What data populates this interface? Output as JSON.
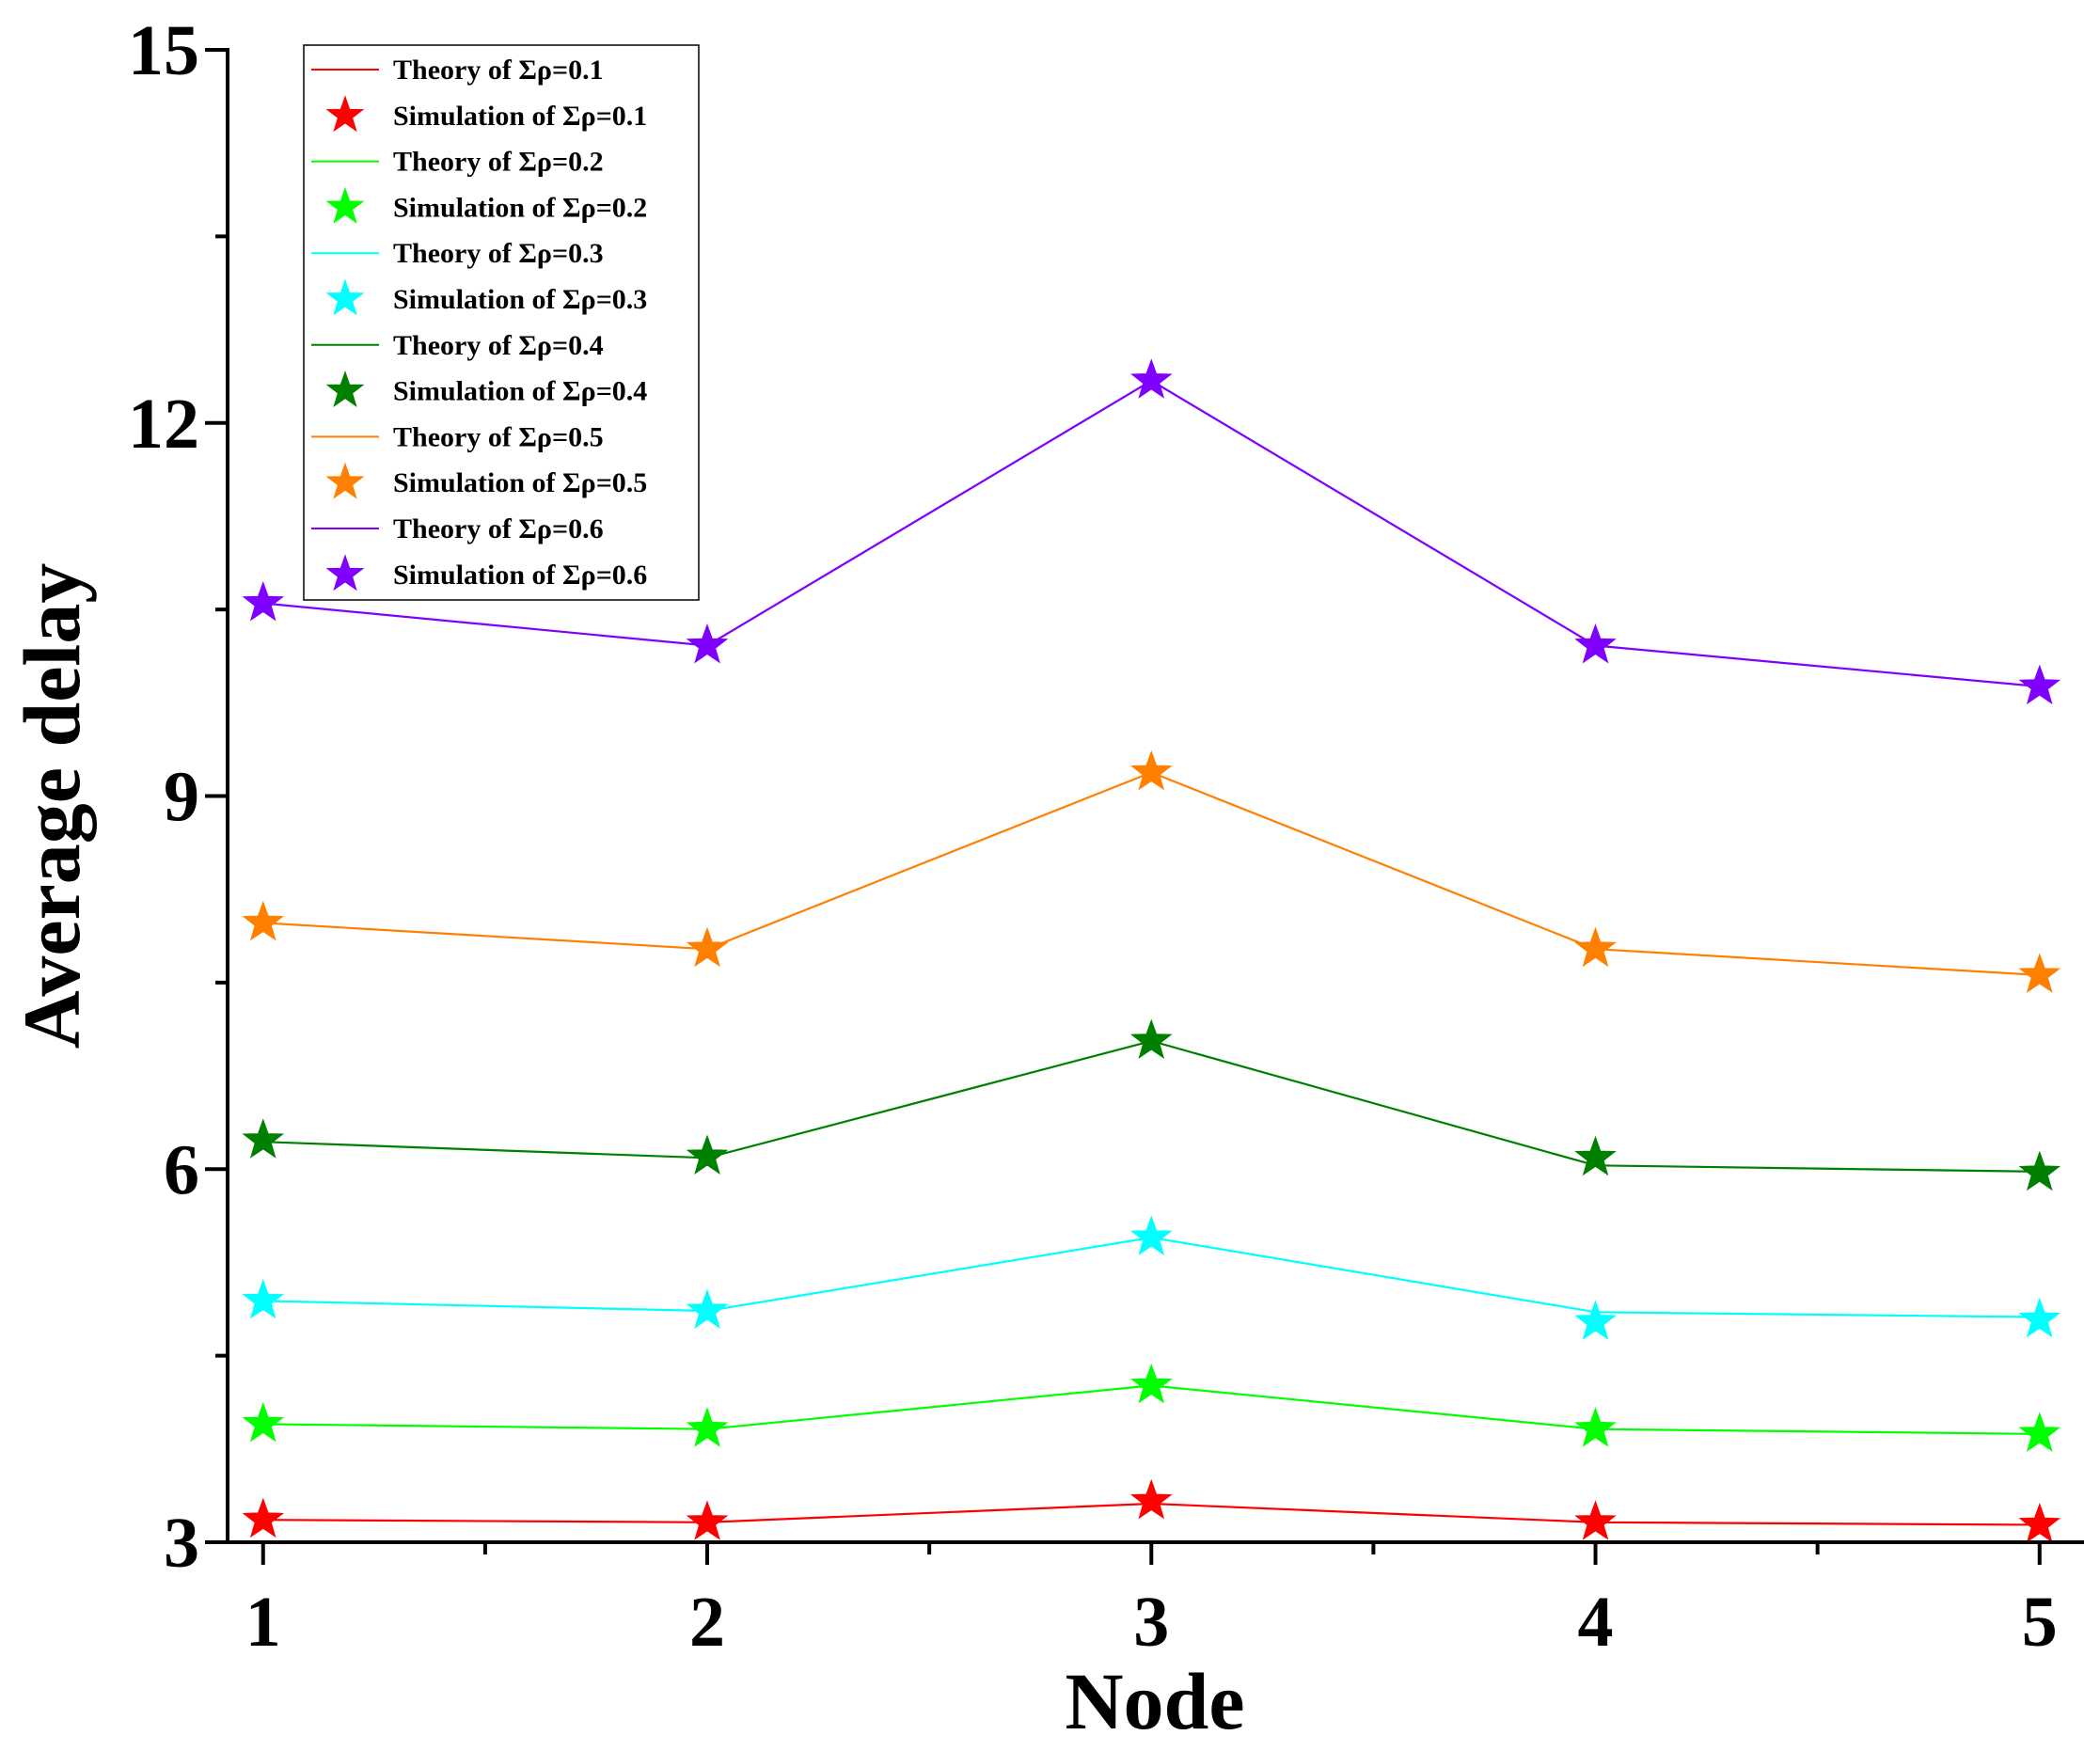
{
  "chart_data": {
    "type": "line",
    "title": "",
    "xlabel": "Node",
    "ylabel": "Average delay",
    "x": [
      1,
      2,
      3,
      4,
      5
    ],
    "xlim": [
      0.92,
      5.1
    ],
    "ylim": [
      3,
      15
    ],
    "xticks": [
      "1",
      "2",
      "3",
      "4",
      "5"
    ],
    "yticks": [
      "3",
      "6",
      "9",
      "12",
      "15"
    ],
    "grid": false,
    "legend_position": "top-left",
    "series": [
      {
        "name": "Σρ=0.1",
        "theory_label": "Theory of Σρ=0.1",
        "sim_label": "Simulation of Σρ=0.1",
        "color": "#ff0000",
        "theory": [
          3.18,
          3.16,
          3.31,
          3.16,
          3.14
        ],
        "simulation": [
          3.18,
          3.16,
          3.33,
          3.16,
          3.14
        ]
      },
      {
        "name": "Σρ=0.2",
        "theory_label": "Theory of Σρ=0.2",
        "sim_label": "Simulation of Σρ=0.2",
        "color": "#00ff00",
        "theory": [
          3.95,
          3.91,
          4.26,
          3.91,
          3.87
        ],
        "simulation": [
          3.95,
          3.91,
          4.26,
          3.91,
          3.87
        ]
      },
      {
        "name": "Σρ=0.3",
        "theory_label": "Theory of Σρ=0.3",
        "sim_label": "Simulation of  Σρ=0.3",
        "color": "#00ffff",
        "theory": [
          4.94,
          4.86,
          5.45,
          4.85,
          4.81
        ],
        "simulation": [
          4.94,
          4.86,
          5.45,
          4.77,
          4.79
        ]
      },
      {
        "name": "Σρ=0.4",
        "theory_label": "Theory of Σρ=0.4",
        "sim_label": "Simulation of  Σρ=0.4",
        "color": "#008000",
        "theory": [
          6.22,
          6.09,
          7.03,
          6.03,
          5.98
        ],
        "simulation": [
          6.23,
          6.1,
          7.03,
          6.09,
          5.97
        ]
      },
      {
        "name": "Σρ=0.5",
        "theory_label": "Theory of Σρ=0.5",
        "sim_label": "Simulation of  Σρ=0.5",
        "color": "#ff8000",
        "theory": [
          7.98,
          7.77,
          9.19,
          7.77,
          7.56
        ],
        "simulation": [
          7.98,
          7.77,
          9.19,
          7.77,
          7.56
        ]
      },
      {
        "name": "Σρ=0.6",
        "theory_label": "Theory of Σρ=0.6",
        "sim_label": "Simulation of Σρ=0.6",
        "color": "#8000ff",
        "theory": [
          10.55,
          10.21,
          12.34,
          10.21,
          9.88
        ],
        "simulation": [
          10.55,
          10.21,
          12.34,
          10.21,
          9.88
        ]
      }
    ]
  }
}
